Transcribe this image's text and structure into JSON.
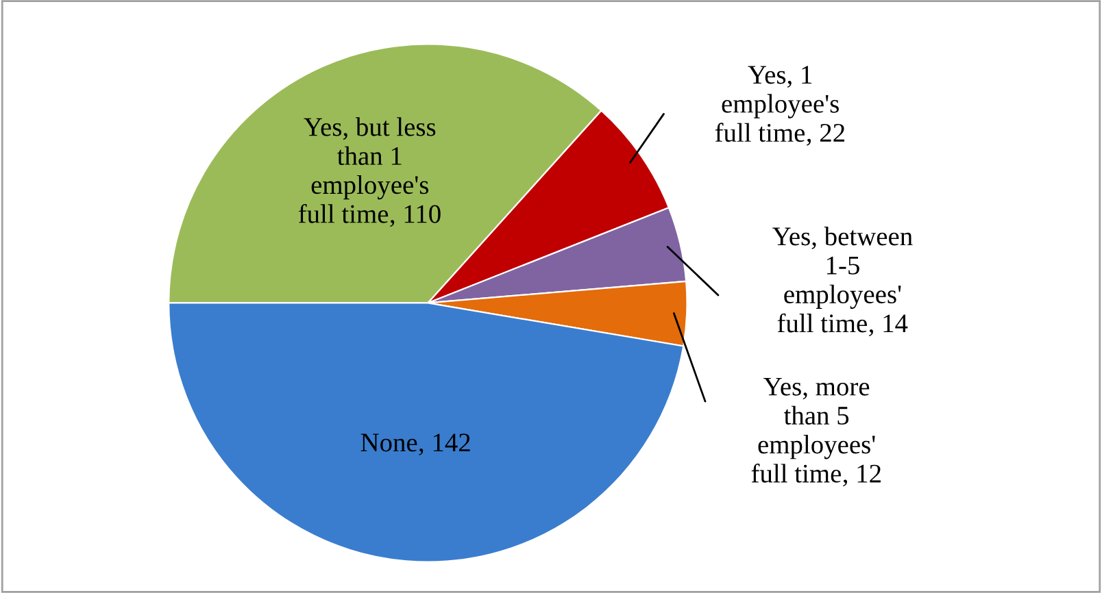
{
  "chart_data": {
    "type": "pie",
    "categories": [
      "Yes, but less\nthan 1\nemployee's\nfull time",
      "Yes, 1\nemployee's\nfull time",
      "Yes, between\n1-5\nemployees'\nfull time",
      "Yes, more\nthan 5\nemployees'\nfull time",
      "None"
    ],
    "values": [
      110,
      22,
      14,
      12,
      142
    ],
    "colors": [
      "#9bbb59",
      "#c00000",
      "#8064a2",
      "#e46c0a",
      "#3a7dce"
    ],
    "value_labels": [
      ", 110",
      ", 22",
      ", 14",
      ", 12",
      ", 142"
    ],
    "legend": false
  }
}
